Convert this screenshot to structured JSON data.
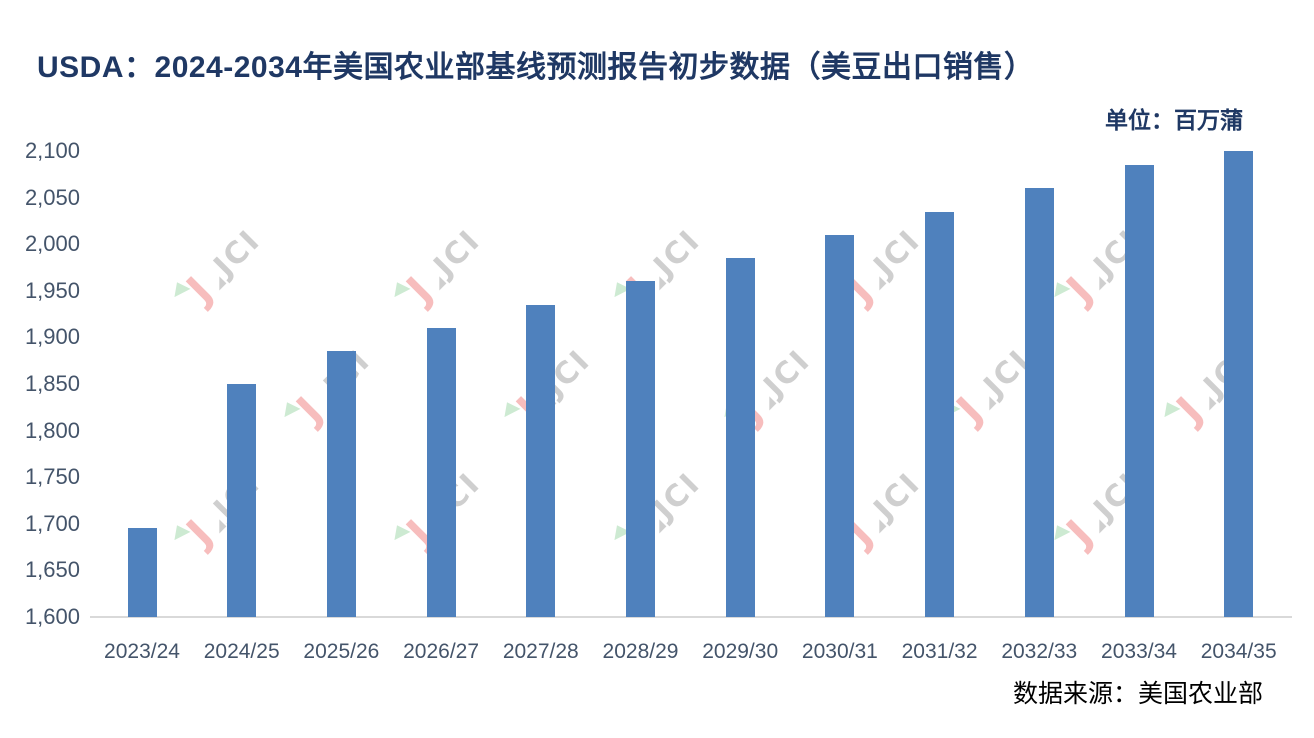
{
  "title": "USDA：2024-2034年美国农业部基线预测报告初步数据（美豆出口销售）",
  "unit_label": "单位：百万蒲",
  "source_label": "数据来源：美国农业部",
  "watermark": {
    "logo_letter": "J",
    "text": "JCI"
  },
  "colors": {
    "bar": "#4F81BD",
    "title": "#1F3864",
    "axis_labels": "#44546A",
    "axis_line": "#D9D9D9",
    "watermark_pink": "#F7BDBD",
    "watermark_gray": "#CFCFCF",
    "watermark_green": "#CDEAD2"
  },
  "chart_data": {
    "type": "bar",
    "title": "USDA：2024-2034年美国农业部基线预测报告初步数据（美豆出口销售）",
    "unit": "百万蒲",
    "source": "数据来源：美国农业部",
    "categories": [
      "2023/24",
      "2024/25",
      "2025/26",
      "2026/27",
      "2027/28",
      "2028/29",
      "2029/30",
      "2030/31",
      "2031/32",
      "2032/33",
      "2033/34",
      "2034/35"
    ],
    "values": [
      1695,
      1850,
      1885,
      1910,
      1935,
      1960,
      1985,
      2010,
      2035,
      2060,
      2085,
      2100
    ],
    "xlabel": "",
    "ylabel": "",
    "ylim": [
      1600,
      2100
    ],
    "ytick_step": 50,
    "yticks": [
      1600,
      1650,
      1700,
      1750,
      1800,
      1850,
      1900,
      1950,
      2000,
      2050,
      2100
    ],
    "grid": false,
    "legend": "none",
    "bar_color": "#4F81BD"
  }
}
